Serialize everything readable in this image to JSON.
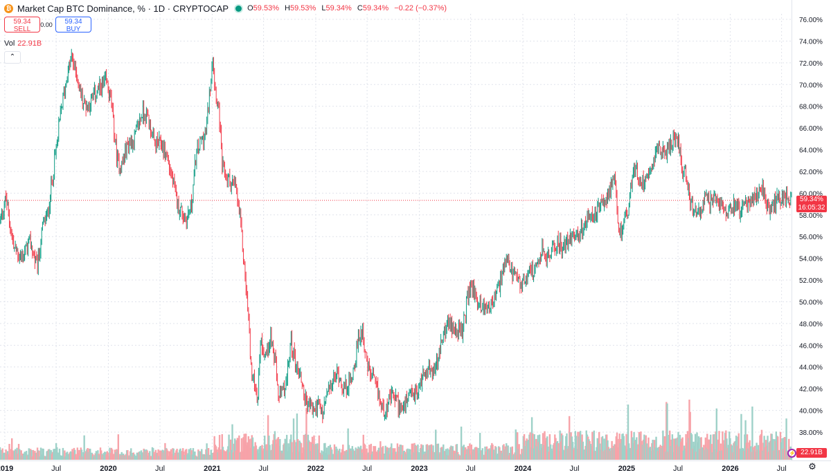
{
  "legend": {
    "coin_icon": "bitcoin-icon",
    "coin_symbol": "₿",
    "title": "Market Cap BTC Dominance, % · 1D · CRYPTOCAP",
    "status_icon": "live-dot-icon",
    "o_label": "O",
    "o_value": "59.53%",
    "h_label": "H",
    "h_value": "59.53%",
    "l_label": "L",
    "l_value": "59.34%",
    "c_label": "C",
    "c_value": "59.34%",
    "change": "−0.22 (−0.37%)"
  },
  "trade": {
    "sell_price": "59.34",
    "sell_label": "SELL",
    "spread": "0.00",
    "buy_price": "59.34",
    "buy_label": "BUY"
  },
  "volume_legend": {
    "label": "Vol",
    "value": "22.91B"
  },
  "collapse_icon": "chevron-up-icon",
  "collapse_glyph": "⌃",
  "last_price": {
    "value": "59.34%",
    "countdown": "16:05:32"
  },
  "last_volume": "22.91B",
  "settings_icon": "gear-icon",
  "event_icon": "lightning-icon",
  "colors": {
    "up": "#089981",
    "down": "#f23645",
    "vol_up": "#9ed1c8",
    "vol_down": "#f7a3a9",
    "grid": "#e0e3eb",
    "bitcoin": "#f7931a"
  },
  "chart_data": {
    "type": "candlestick",
    "title": "Market Cap BTC Dominance, % · 1D · CRYPTOCAP",
    "ylim": [
      36.2,
      76.8
    ],
    "y_unit": "%",
    "y_ticks": [
      "76.00%",
      "74.00%",
      "72.00%",
      "70.00%",
      "68.00%",
      "66.00%",
      "64.00%",
      "62.00%",
      "60.00%",
      "58.00%",
      "56.00%",
      "54.00%",
      "52.00%",
      "50.00%",
      "48.00%",
      "46.00%",
      "44.00%",
      "42.00%",
      "40.00%",
      "38.00%"
    ],
    "x_ticks": [
      "2019",
      "Jul",
      "2020",
      "Jul",
      "2021",
      "Jul",
      "2022",
      "Jul",
      "2023",
      "Jul",
      "2024",
      "Jul",
      "2025",
      "Jul",
      "2026",
      "Jul"
    ],
    "x_range": [
      "2018-12",
      "2026-09"
    ],
    "grid": true,
    "price_line": 59.34,
    "trend_points": [
      [
        "2018-12-15",
        57.5
      ],
      [
        "2019-01-05",
        59.5
      ],
      [
        "2019-02-01",
        55.0
      ],
      [
        "2019-03-01",
        54.0
      ],
      [
        "2019-04-01",
        55.5
      ],
      [
        "2019-04-25",
        53.0
      ],
      [
        "2019-05-15",
        57.0
      ],
      [
        "2019-06-01",
        58.0
      ],
      [
        "2019-06-20",
        62.0
      ],
      [
        "2019-07-01",
        64.0
      ],
      [
        "2019-07-20",
        68.0
      ],
      [
        "2019-08-10",
        71.0
      ],
      [
        "2019-08-25",
        72.5
      ],
      [
        "2019-09-10",
        71.0
      ],
      [
        "2019-10-01",
        68.5
      ],
      [
        "2019-10-20",
        68.0
      ],
      [
        "2019-11-10",
        69.0
      ],
      [
        "2019-12-10",
        69.8
      ],
      [
        "2019-12-25",
        70.3
      ],
      [
        "2020-01-10",
        68.5
      ],
      [
        "2020-02-01",
        63.0
      ],
      [
        "2020-02-15",
        62.5
      ],
      [
        "2020-03-10",
        64.5
      ],
      [
        "2020-04-01",
        65.0
      ],
      [
        "2020-05-01",
        67.5
      ],
      [
        "2020-05-20",
        67.0
      ],
      [
        "2020-06-10",
        64.5
      ],
      [
        "2020-07-05",
        64.5
      ],
      [
        "2020-07-25",
        63.5
      ],
      [
        "2020-08-15",
        61.0
      ],
      [
        "2020-09-01",
        59.0
      ],
      [
        "2020-09-20",
        58.0
      ],
      [
        "2020-10-01",
        57.5
      ],
      [
        "2020-10-20",
        59.0
      ],
      [
        "2020-11-05",
        63.5
      ],
      [
        "2020-11-25",
        65.0
      ],
      [
        "2020-12-10",
        65.5
      ],
      [
        "2020-12-25",
        70.0
      ],
      [
        "2021-01-03",
        73.0
      ],
      [
        "2021-01-10",
        70.0
      ],
      [
        "2021-01-25",
        67.5
      ],
      [
        "2021-02-05",
        62.5
      ],
      [
        "2021-02-20",
        61.5
      ],
      [
        "2021-03-10",
        61.0
      ],
      [
        "2021-03-25",
        60.5
      ],
      [
        "2021-04-10",
        57.5
      ],
      [
        "2021-04-25",
        53.0
      ],
      [
        "2021-05-10",
        48.0
      ],
      [
        "2021-05-20",
        43.0
      ],
      [
        "2021-06-01",
        42.5
      ],
      [
        "2021-06-10",
        41.0
      ],
      [
        "2021-06-20",
        46.5
      ],
      [
        "2021-07-10",
        45.0
      ],
      [
        "2021-07-25",
        47.0
      ],
      [
        "2021-08-10",
        44.5
      ],
      [
        "2021-08-25",
        41.0
      ],
      [
        "2021-09-05",
        41.5
      ],
      [
        "2021-09-20",
        42.5
      ],
      [
        "2021-10-05",
        46.5
      ],
      [
        "2021-10-20",
        44.5
      ],
      [
        "2021-11-10",
        43.0
      ],
      [
        "2021-11-25",
        41.0
      ],
      [
        "2021-12-10",
        40.5
      ],
      [
        "2021-12-25",
        40.0
      ],
      [
        "2022-01-10",
        40.5
      ],
      [
        "2022-01-25",
        39.5
      ],
      [
        "2022-02-10",
        41.5
      ],
      [
        "2022-03-01",
        42.5
      ],
      [
        "2022-03-20",
        43.5
      ],
      [
        "2022-04-10",
        42.0
      ],
      [
        "2022-05-01",
        42.5
      ],
      [
        "2022-05-15",
        44.0
      ],
      [
        "2022-06-01",
        46.5
      ],
      [
        "2022-06-15",
        47.5
      ],
      [
        "2022-07-01",
        44.0
      ],
      [
        "2022-07-20",
        43.0
      ],
      [
        "2022-08-10",
        41.5
      ],
      [
        "2022-08-25",
        40.0
      ],
      [
        "2022-09-10",
        40.5
      ],
      [
        "2022-10-01",
        41.5
      ],
      [
        "2022-10-20",
        40.5
      ],
      [
        "2022-11-05",
        40.0
      ],
      [
        "2022-11-20",
        40.8
      ],
      [
        "2022-12-10",
        41.5
      ],
      [
        "2022-12-25",
        41.5
      ],
      [
        "2023-01-10",
        43.0
      ],
      [
        "2023-01-25",
        44.0
      ],
      [
        "2023-02-15",
        43.5
      ],
      [
        "2023-03-01",
        44.0
      ],
      [
        "2023-03-15",
        45.5
      ],
      [
        "2023-04-01",
        47.5
      ],
      [
        "2023-04-20",
        48.0
      ],
      [
        "2023-05-10",
        47.5
      ],
      [
        "2023-06-01",
        47.0
      ],
      [
        "2023-06-20",
        50.5
      ],
      [
        "2023-07-05",
        51.5
      ],
      [
        "2023-07-25",
        50.0
      ],
      [
        "2023-08-10",
        49.5
      ],
      [
        "2023-09-01",
        49.5
      ],
      [
        "2023-09-20",
        50.0
      ],
      [
        "2023-10-10",
        51.5
      ],
      [
        "2023-10-25",
        53.0
      ],
      [
        "2023-11-10",
        53.5
      ],
      [
        "2023-11-25",
        52.5
      ],
      [
        "2023-12-10",
        52.0
      ],
      [
        "2023-12-25",
        51.5
      ],
      [
        "2024-01-10",
        52.0
      ],
      [
        "2024-01-25",
        53.5
      ],
      [
        "2024-02-10",
        52.5
      ],
      [
        "2024-02-25",
        53.5
      ],
      [
        "2024-03-10",
        55.0
      ],
      [
        "2024-03-25",
        54.0
      ],
      [
        "2024-04-10",
        54.5
      ],
      [
        "2024-05-01",
        55.5
      ],
      [
        "2024-05-20",
        55.0
      ],
      [
        "2024-06-10",
        55.5
      ],
      [
        "2024-06-25",
        56.5
      ],
      [
        "2024-07-10",
        56.0
      ],
      [
        "2024-08-01",
        57.0
      ],
      [
        "2024-08-20",
        57.5
      ],
      [
        "2024-09-10",
        58.0
      ],
      [
        "2024-09-25",
        58.5
      ],
      [
        "2024-10-10",
        59.0
      ],
      [
        "2024-10-25",
        60.0
      ],
      [
        "2024-11-10",
        60.5
      ],
      [
        "2024-11-20",
        61.0
      ],
      [
        "2024-12-05",
        56.0
      ],
      [
        "2024-12-15",
        57.0
      ],
      [
        "2024-12-31",
        58.0
      ],
      [
        "2025-01-10",
        59.0
      ],
      [
        "2025-01-25",
        62.5
      ],
      [
        "2025-02-10",
        61.5
      ],
      [
        "2025-02-25",
        61.0
      ],
      [
        "2025-03-10",
        61.5
      ],
      [
        "2025-03-25",
        62.5
      ],
      [
        "2025-04-10",
        63.5
      ],
      [
        "2025-04-25",
        64.5
      ],
      [
        "2025-05-10",
        63.5
      ],
      [
        "2025-05-25",
        64.0
      ],
      [
        "2025-06-10",
        64.5
      ],
      [
        "2025-06-25",
        65.5
      ],
      [
        "2025-07-05",
        64.5
      ],
      [
        "2025-07-15",
        62.0
      ],
      [
        "2025-07-25",
        62.5
      ],
      [
        "2025-08-10",
        59.5
      ],
      [
        "2025-08-25",
        58.0
      ],
      [
        "2025-09-10",
        58.5
      ],
      [
        "2025-09-25",
        58.5
      ],
      [
        "2025-10-05",
        59.5
      ],
      [
        "2025-10-20",
        59.0
      ],
      [
        "2025-11-05",
        59.5
      ],
      [
        "2025-11-20",
        59.0
      ],
      [
        "2025-12-05",
        59.0
      ],
      [
        "2025-12-20",
        58.5
      ],
      [
        "2026-01-05",
        59.0
      ],
      [
        "2026-01-20",
        59.0
      ],
      [
        "2026-02-05",
        58.5
      ],
      [
        "2026-02-20",
        58.8
      ],
      [
        "2026-03-10",
        59.0
      ],
      [
        "2026-03-25",
        59.5
      ],
      [
        "2026-04-10",
        60.0
      ],
      [
        "2026-04-25",
        60.5
      ],
      [
        "2026-05-05",
        59.0
      ],
      [
        "2026-05-15",
        58.5
      ],
      [
        "2026-06-01",
        58.8
      ],
      [
        "2026-06-15",
        59.3
      ],
      [
        "2026-07-01",
        59.5
      ],
      [
        "2026-07-15",
        59.8
      ],
      [
        "2026-07-25",
        59.8
      ],
      [
        "2026-08-05",
        59.34
      ]
    ]
  }
}
